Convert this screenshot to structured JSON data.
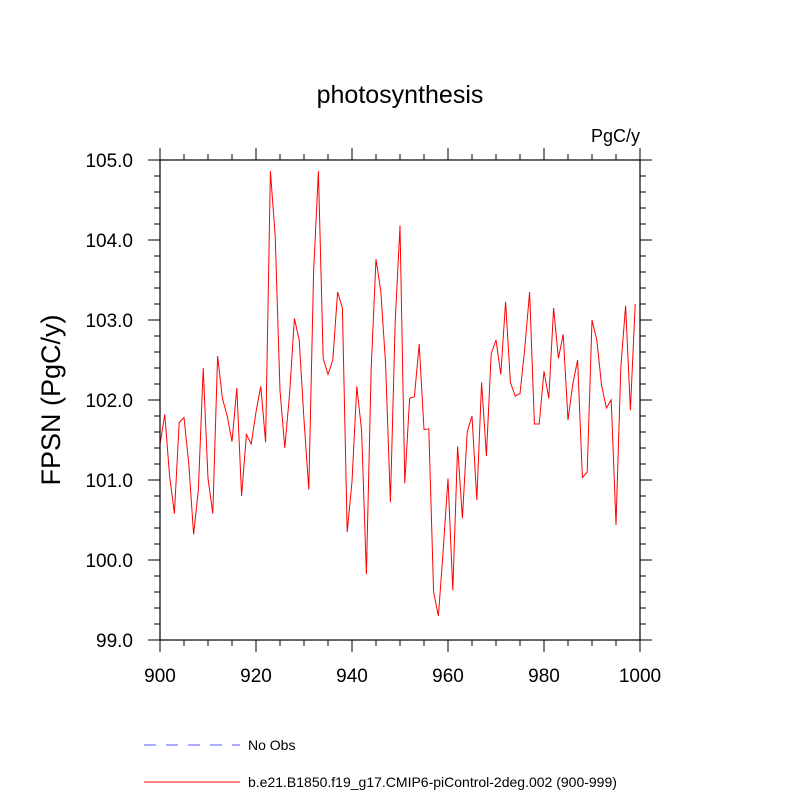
{
  "chart_data": {
    "type": "line",
    "title": "photosynthesis",
    "units": "PgC/y",
    "ylabel": "FPSN  (PgC/y)",
    "xlabel": "",
    "xlim": [
      900,
      1000
    ],
    "ylim": [
      99.0,
      105.0
    ],
    "x_ticks": [
      "900",
      "920",
      "940",
      "960",
      "980",
      "1000"
    ],
    "y_ticks": [
      "99.0",
      "100.0",
      "101.0",
      "102.0",
      "103.0",
      "104.0",
      "105.0"
    ],
    "grid": false,
    "legend_position": "bottom-left",
    "series": [
      {
        "name": "b.e21.B1850.f19_g17.CMIP6-piControl-2deg.002 (900-999)",
        "color": "#ff0000",
        "style": "solid",
        "x": [
          900,
          901,
          902,
          903,
          904,
          905,
          906,
          907,
          908,
          909,
          910,
          911,
          912,
          913,
          914,
          915,
          916,
          917,
          918,
          919,
          920,
          921,
          922,
          923,
          924,
          925,
          926,
          927,
          928,
          929,
          930,
          931,
          932,
          933,
          934,
          935,
          936,
          937,
          938,
          939,
          940,
          941,
          942,
          943,
          944,
          945,
          946,
          947,
          948,
          949,
          950,
          951,
          952,
          953,
          954,
          955,
          956,
          957,
          958,
          959,
          960,
          961,
          962,
          963,
          964,
          965,
          966,
          967,
          968,
          969,
          970,
          971,
          972,
          973,
          974,
          975,
          976,
          977,
          978,
          979,
          980,
          981,
          982,
          983,
          984,
          985,
          986,
          987,
          988,
          989,
          990,
          991,
          992,
          993,
          994,
          995,
          996,
          997,
          998,
          999
        ],
        "values": [
          101.45,
          101.82,
          101.05,
          100.58,
          101.72,
          101.78,
          101.2,
          100.32,
          100.88,
          102.4,
          101.02,
          100.58,
          102.55,
          102.02,
          101.8,
          101.48,
          102.15,
          100.8,
          101.57,
          101.45,
          101.85,
          102.17,
          101.47,
          104.86,
          104.05,
          102.12,
          101.4,
          102.08,
          103.02,
          102.75,
          101.75,
          100.88,
          103.6,
          104.86,
          102.52,
          102.32,
          102.5,
          103.35,
          103.15,
          100.35,
          100.98,
          102.17,
          101.62,
          99.82,
          102.4,
          103.76,
          103.36,
          102.45,
          100.72,
          102.98,
          104.18,
          100.96,
          102.02,
          102.04,
          102.7,
          101.63,
          101.64,
          99.6,
          99.3,
          100.12,
          101.02,
          99.62,
          101.42,
          100.52,
          101.6,
          101.8,
          100.75,
          102.22,
          101.3,
          102.58,
          102.75,
          102.32,
          103.23,
          102.22,
          102.05,
          102.08,
          102.65,
          103.35,
          101.7,
          101.7,
          102.36,
          102.02,
          103.15,
          102.52,
          102.82,
          101.75,
          102.2,
          102.5,
          101.03,
          101.1,
          103.0,
          102.75,
          102.18,
          101.9,
          102.0,
          100.44,
          102.4,
          103.18,
          101.87,
          103.2
        ]
      }
    ],
    "legend": [
      {
        "label": "No Obs",
        "color": "#5555ff",
        "style": "dashed"
      },
      {
        "label": "b.e21.B1850.f19_g17.CMIP6-piControl-2deg.002 (900-999)",
        "color": "#ff0000",
        "style": "solid"
      }
    ]
  }
}
